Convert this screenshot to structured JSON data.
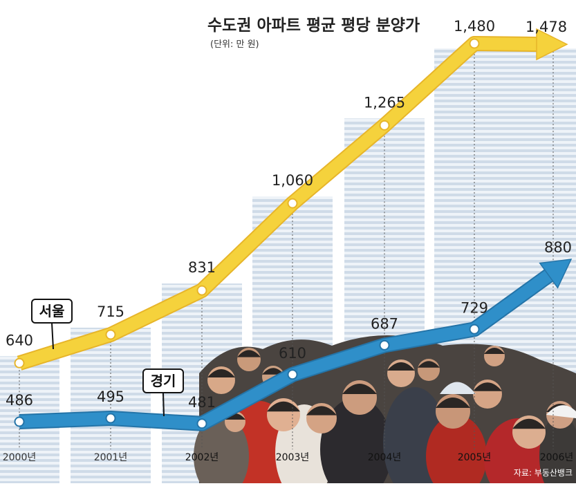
{
  "chart_data": {
    "type": "line",
    "title": "수도권 아파트 평균 평당 분양가",
    "subtitle": "(단위: 만 원)",
    "unit": "만 원",
    "categories": [
      "2000년",
      "2001년",
      "2002년",
      "2003년",
      "2004년",
      "2005년",
      "2006년"
    ],
    "ylim": [
      0,
      1600
    ],
    "grid": false,
    "legend": "inline-callouts",
    "series": [
      {
        "name": "서울",
        "color": "#f5d23c",
        "values": [
          640,
          715,
          831,
          1060,
          1265,
          1480,
          1478
        ],
        "labels": [
          "640",
          "715",
          "831",
          "1,060",
          "1,265",
          "1,480",
          "1,478"
        ]
      },
      {
        "name": "경기",
        "color": "#2f8fc9",
        "values": [
          486,
          495,
          481,
          610,
          687,
          729,
          880
        ],
        "labels": [
          "486",
          "495",
          "481",
          "610",
          "687",
          "729",
          "880"
        ]
      }
    ],
    "source": "자료: 부동산뱅크"
  }
}
